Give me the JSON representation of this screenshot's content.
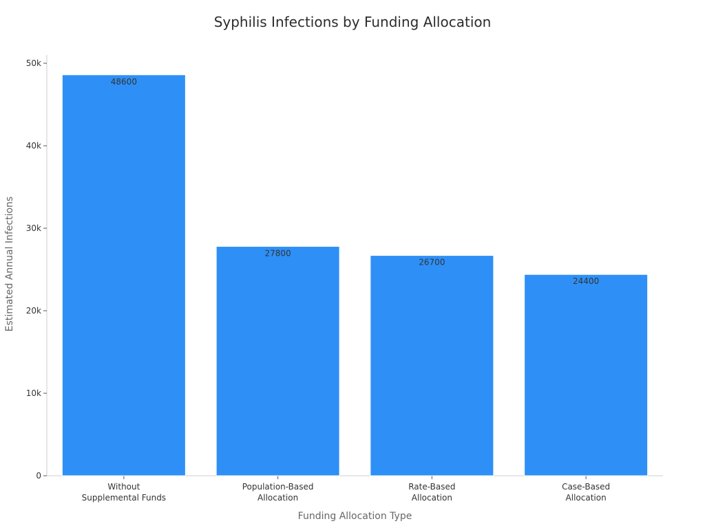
{
  "chart_data": {
    "type": "bar",
    "title": "Syphilis Infections by Funding Allocation",
    "xlabel": "Funding Allocation Type",
    "ylabel": "Estimated Annual Infections",
    "categories": [
      [
        "Without",
        "Supplemental Funds"
      ],
      [
        "Population-Based",
        "Allocation"
      ],
      [
        "Rate-Based",
        "Allocation"
      ],
      [
        "Case-Based",
        "Allocation"
      ]
    ],
    "values": [
      48600,
      27800,
      26700,
      24400
    ],
    "ylim": [
      0,
      51000
    ],
    "yticks": [
      0,
      10000,
      20000,
      30000,
      40000,
      50000
    ],
    "ytick_labels": [
      "0",
      "10k",
      "20k",
      "30k",
      "40k",
      "50k"
    ],
    "grid": false,
    "bar_color": "#2E90F7",
    "axis_color": "#cccccc"
  }
}
